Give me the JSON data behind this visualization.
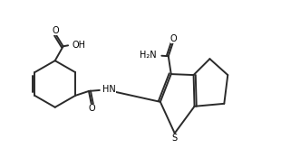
{
  "bg_color": "#ffffff",
  "line_color": "#2a2a2a",
  "line_width": 1.4,
  "font_size": 7.0,
  "figsize": [
    3.1,
    1.85
  ],
  "dpi": 100,
  "xlim": [
    0,
    31
  ],
  "ylim": [
    0,
    18.5
  ]
}
